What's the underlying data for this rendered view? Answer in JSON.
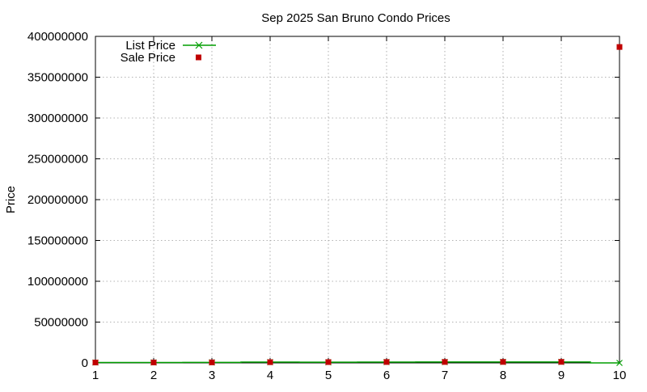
{
  "chart_data": {
    "type": "line",
    "title": "Sep 2025 San Bruno Condo Prices",
    "ylabel": "Price",
    "xlabel": "",
    "xlim": [
      1,
      10
    ],
    "ylim": [
      0,
      400000000
    ],
    "x_ticks": [
      "1",
      "2",
      "3",
      "4",
      "5",
      "6",
      "7",
      "8",
      "9",
      "10"
    ],
    "y_ticks": [
      "0",
      "50000000",
      "100000000",
      "150000000",
      "200000000",
      "250000000",
      "300000000",
      "350000000",
      "400000000"
    ],
    "grid": true,
    "legend_position": "top-left",
    "series": [
      {
        "name": "List Price",
        "style": "steps-with-cross",
        "color": "#009e00",
        "points": [
          {
            "x": 1,
            "y": 500000
          },
          {
            "x": 2,
            "y": 550000
          },
          {
            "x": 3,
            "y": 650000
          },
          {
            "x": 4,
            "y": 999000
          },
          {
            "x": 5,
            "y": 850000
          },
          {
            "x": 6,
            "y": 1050000
          },
          {
            "x": 7,
            "y": 1100000
          },
          {
            "x": 8,
            "y": 1150000
          },
          {
            "x": 9,
            "y": 1150000
          },
          {
            "x": 10,
            "y": 0
          }
        ]
      },
      {
        "name": "Sale Price",
        "style": "square-points",
        "color": "#c00000",
        "points": [
          {
            "x": 1,
            "y": 500000
          },
          {
            "x": 2,
            "y": 550000
          },
          {
            "x": 3,
            "y": 650000
          },
          {
            "x": 4,
            "y": 900000
          },
          {
            "x": 5,
            "y": 1000000
          },
          {
            "x": 6,
            "y": 1100000
          },
          {
            "x": 7,
            "y": 1150000
          },
          {
            "x": 8,
            "y": 1200000
          },
          {
            "x": 9,
            "y": 1250000
          },
          {
            "x": 10,
            "y": 387000000
          }
        ]
      }
    ]
  }
}
